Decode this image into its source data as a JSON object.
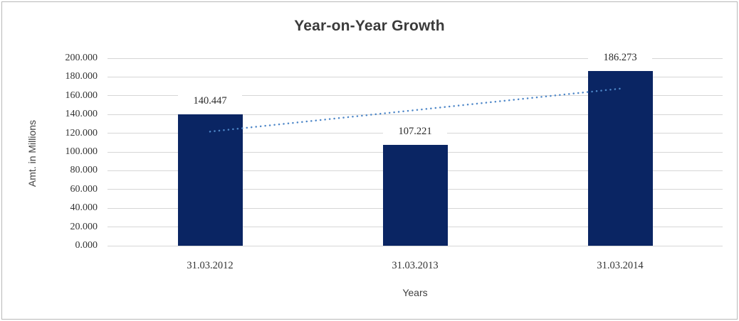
{
  "chart_data": {
    "type": "bar",
    "title": "Year-on-Year Growth",
    "xlabel": "Years",
    "ylabel": "Amt. in Millions",
    "categories": [
      "31.03.2012",
      "31.03.2013",
      "31.03.2014"
    ],
    "values": [
      140.447,
      107.221,
      186.273
    ],
    "data_labels": [
      "140.447",
      "107.221",
      "186.273"
    ],
    "ylim": [
      0,
      200
    ],
    "ytick_step": 20,
    "ytick_labels": [
      "0.000",
      "20.000",
      "40.000",
      "60.000",
      "80.000",
      "100.000",
      "120.000",
      "140.000",
      "160.000",
      "180.000",
      "200.000"
    ],
    "grid": true,
    "legend": "none",
    "trendline": {
      "type": "linear",
      "style": "dotted",
      "values": [
        121.734,
        144.647,
        167.56
      ]
    },
    "colors": {
      "bar": "#0a2563",
      "trendline": "#4e87c8",
      "gridline": "#d6d6d6",
      "title_text": "#3b3b3b",
      "axis_text": "#404040",
      "tick_text": "#333333"
    }
  }
}
